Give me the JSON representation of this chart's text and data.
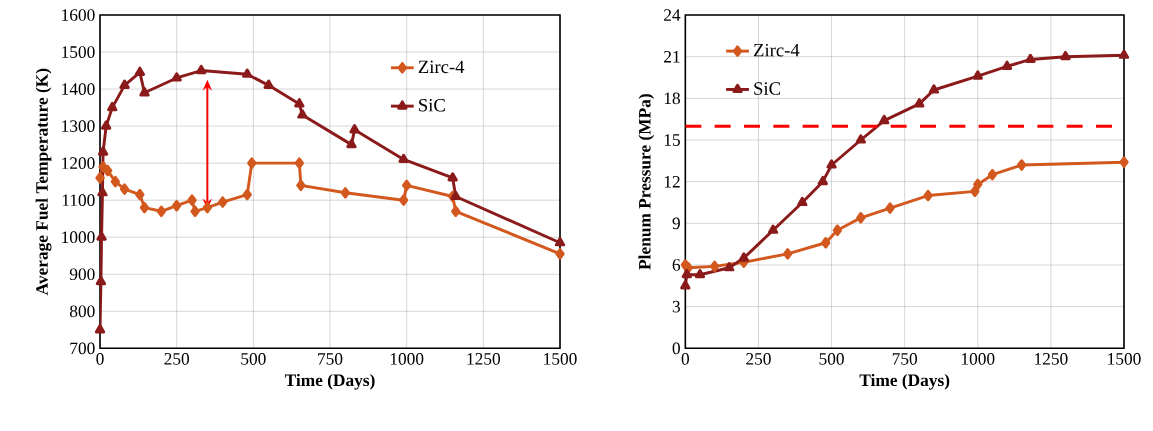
{
  "chart_data": [
    {
      "type": "line",
      "xlabel": "Time (Days)",
      "ylabel": "Average Fuel Temperature (K)",
      "xlim": [
        0,
        1500
      ],
      "ylim": [
        700,
        1600
      ],
      "xticks": [
        0,
        250,
        500,
        750,
        1000,
        1250,
        1500
      ],
      "yticks": [
        700,
        800,
        900,
        1000,
        1100,
        1200,
        1300,
        1400,
        1500,
        1600
      ],
      "grid": true,
      "legend": "top right",
      "series": [
        {
          "name": "Zirc-4",
          "color": "#d2581e",
          "marker": "diamond",
          "x": [
            0,
            10,
            25,
            50,
            80,
            130,
            145,
            200,
            250,
            300,
            310,
            350,
            400,
            480,
            495,
            650,
            655,
            800,
            990,
            1000,
            1150,
            1160,
            1500
          ],
          "values": [
            1160,
            1190,
            1180,
            1150,
            1130,
            1115,
            1080,
            1070,
            1085,
            1100,
            1070,
            1080,
            1095,
            1115,
            1200,
            1200,
            1140,
            1120,
            1100,
            1140,
            1110,
            1070,
            955
          ]
        },
        {
          "name": "SiC",
          "color": "#8b1a1a",
          "marker": "triangle",
          "x": [
            0,
            3,
            5,
            8,
            10,
            20,
            40,
            80,
            130,
            145,
            250,
            330,
            480,
            550,
            650,
            660,
            820,
            830,
            990,
            1150,
            1160,
            1500
          ],
          "values": [
            750,
            880,
            1000,
            1120,
            1230,
            1300,
            1350,
            1410,
            1445,
            1390,
            1430,
            1450,
            1440,
            1410,
            1360,
            1330,
            1250,
            1290,
            1210,
            1160,
            1110,
            985
          ]
        }
      ]
    },
    {
      "type": "line",
      "xlabel": "Time (Days)",
      "ylabel": "Plenum Pressure (MPa)",
      "xlim": [
        0,
        1500
      ],
      "ylim": [
        0,
        24
      ],
      "xticks": [
        0,
        250,
        500,
        750,
        1000,
        1250,
        1500
      ],
      "yticks": [
        0,
        3,
        6,
        9,
        12,
        15,
        18,
        21,
        24
      ],
      "grid": true,
      "legend": "top left",
      "ref_lines": [
        {
          "axis": "y",
          "value": 16,
          "color": "#ff0000",
          "line_style": "dashed"
        }
      ],
      "series": [
        {
          "name": "Zirc-4",
          "color": "#d2581e",
          "marker": "diamond",
          "x": [
            0,
            10,
            100,
            200,
            350,
            480,
            520,
            600,
            700,
            830,
            990,
            1000,
            1050,
            1150,
            1500
          ],
          "values": [
            6,
            5.8,
            5.9,
            6.2,
            6.8,
            7.6,
            8.5,
            9.4,
            10.1,
            11,
            11.3,
            11.8,
            12.5,
            13.2,
            13.4
          ]
        },
        {
          "name": "SiC",
          "color": "#8b1a1a",
          "marker": "triangle",
          "x": [
            0,
            5,
            50,
            150,
            200,
            300,
            400,
            470,
            500,
            600,
            680,
            800,
            850,
            1000,
            1100,
            1180,
            1300,
            1500
          ],
          "values": [
            4.5,
            5.3,
            5.3,
            5.8,
            6.5,
            8.5,
            10.5,
            12,
            13.2,
            15,
            16.4,
            17.6,
            18.6,
            19.6,
            20.3,
            20.8,
            21,
            21.1
          ]
        }
      ]
    }
  ]
}
